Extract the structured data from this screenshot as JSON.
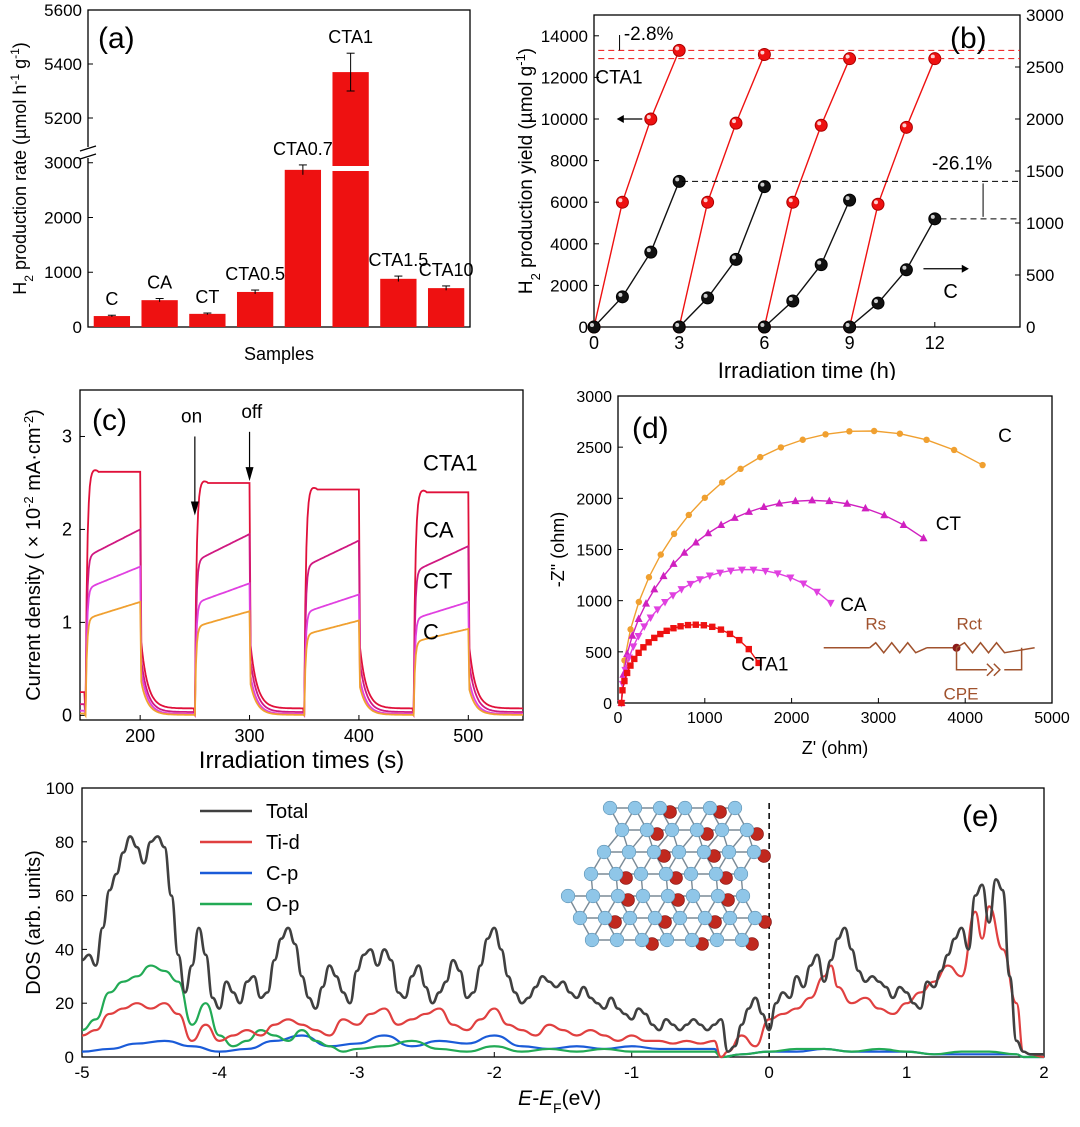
{
  "colors": {
    "red": "#ee1111",
    "black": "#111111",
    "orange": "#f0a030",
    "magenta": "#e040e0",
    "crimson": "#e0103a",
    "blue": "#1a5bd8",
    "green": "#22aa55",
    "dark": "#404040",
    "brown": "#a0522d",
    "atom_blue": "#8fc6e8",
    "atom_red": "#c0281e"
  },
  "chart_data": [
    {
      "id": "a",
      "type": "bar",
      "panel_label": "(a)",
      "xlabel": "Samples",
      "ylabel_pre": "H",
      "ylabel_sub": "2",
      "ylabel_mid": " production rate (µmol h",
      "ylabel_sup1": "-1",
      "ylabel_mid2": " g",
      "ylabel_sup2": "-1",
      "ylabel_post": ")",
      "categories": [
        "C",
        "CA",
        "CT",
        "CTA0.5",
        "CTA0.7",
        "CTA1",
        "CTA1.5",
        "CTA10"
      ],
      "values": [
        200,
        490,
        240,
        640,
        2870,
        5370,
        880,
        710
      ],
      "errors": [
        15,
        30,
        15,
        35,
        90,
        70,
        50,
        40
      ],
      "lower_ylim": [
        0,
        3050
      ],
      "upper_ylim": [
        5100,
        5600
      ],
      "lower_ticks": [
        0,
        1000,
        2000,
        3000
      ],
      "upper_ticks": [
        5200,
        5400,
        5600
      ]
    },
    {
      "id": "b",
      "type": "line",
      "panel_label": "(b)",
      "xlabel": "Irradiation time (h)",
      "ylabel_pre": "H",
      "ylabel_sub": "2",
      "ylabel_mid": " production yield (µmol g",
      "ylabel_sup": "-1",
      "ylabel_post": ")",
      "xlim": [
        0,
        15
      ],
      "xticks": [
        0,
        3,
        6,
        9,
        12
      ],
      "ylim_left": [
        0,
        15000
      ],
      "yticks_left": [
        0,
        2000,
        4000,
        6000,
        8000,
        10000,
        12000,
        14000
      ],
      "ylim_right": [
        0,
        3000
      ],
      "yticks_right": [
        0,
        500,
        1000,
        1500,
        2000,
        2500,
        3000
      ],
      "series": [
        {
          "name": "CTA1",
          "axis": "left",
          "cycles": [
            {
              "x": [
                0,
                1,
                2,
                3
              ],
              "y": [
                0,
                6000,
                10000,
                13300
              ]
            },
            {
              "x": [
                3,
                4,
                5,
                6
              ],
              "y": [
                0,
                6000,
                9800,
                13100
              ]
            },
            {
              "x": [
                6,
                7,
                8,
                9
              ],
              "y": [
                0,
                6000,
                9700,
                12900
              ]
            },
            {
              "x": [
                9,
                10,
                11,
                12
              ],
              "y": [
                0,
                5900,
                9600,
                12900
              ]
            }
          ]
        },
        {
          "name": "C",
          "axis": "right",
          "cycles": [
            {
              "x": [
                0,
                1,
                2,
                3
              ],
              "y": [
                0,
                290,
                720,
                1400
              ]
            },
            {
              "x": [
                3,
                4,
                5,
                6
              ],
              "y": [
                0,
                280,
                650,
                1350
              ]
            },
            {
              "x": [
                6,
                7,
                8,
                9
              ],
              "y": [
                0,
                250,
                600,
                1220
              ]
            },
            {
              "x": [
                9,
                10,
                11,
                12
              ],
              "y": [
                0,
                230,
                550,
                1040
              ]
            }
          ]
        }
      ],
      "annotations": {
        "cta1_drop": "-2.8%",
        "c_drop": "-26.1%",
        "cta1_label": "CTA1",
        "c_label": "C"
      }
    },
    {
      "id": "c",
      "type": "line",
      "panel_label": "(c)",
      "xlabel": "Irradiation times (s)",
      "ylabel_pre": "Current density ( × 10",
      "ylabel_sup": "-2",
      "ylabel_mid": " mA·cm",
      "ylabel_sup2": "-2",
      "ylabel_post": ")",
      "xlim": [
        145,
        550
      ],
      "xticks": [
        200,
        300,
        400,
        500
      ],
      "ylim": [
        -0.05,
        3.5
      ],
      "yticks": [
        0,
        1,
        2,
        3
      ],
      "on_label": "on",
      "off_label": "off",
      "light_on": [
        150,
        250,
        350,
        450
      ],
      "light_duration": 50,
      "series": [
        {
          "name": "CTA1",
          "plateau": [
            2.62,
            2.5,
            2.43,
            2.4
          ],
          "dark": 0.25
        },
        {
          "name": "CA",
          "plateau": [
            2.0,
            1.95,
            1.88,
            1.82
          ],
          "dark": 0.12
        },
        {
          "name": "CT",
          "plateau": [
            1.6,
            1.42,
            1.3,
            1.22
          ],
          "dark": 0.05
        },
        {
          "name": "C",
          "plateau": [
            1.22,
            1.12,
            1.02,
            0.93
          ],
          "dark": 0.02
        }
      ]
    },
    {
      "id": "d",
      "type": "scatter",
      "panel_label": "(d)",
      "xlabel": "Z' (ohm)",
      "ylabel": "-Z\" (ohm)",
      "xlim": [
        0,
        5000
      ],
      "xticks": [
        0,
        1000,
        2000,
        3000,
        4000,
        5000
      ],
      "ylim": [
        0,
        3000
      ],
      "yticks": [
        0,
        500,
        1000,
        1500,
        2000,
        2500,
        3000
      ],
      "series": [
        {
          "name": "C",
          "marker": "circle",
          "diameter": 5600,
          "end_x": 4200
        },
        {
          "name": "CT",
          "marker": "triangle-up",
          "diameter": 4400,
          "end_x": 3520
        },
        {
          "name": "CA",
          "marker": "triangle-down",
          "diameter": 2900,
          "end_x": 2450
        },
        {
          "name": "CTA1",
          "marker": "square",
          "diameter": 1700,
          "end_x": 1620
        }
      ],
      "circuit": {
        "rs": "Rs",
        "rct": "Rct",
        "cpe": "CPE"
      }
    },
    {
      "id": "e",
      "type": "line",
      "panel_label": "(e)",
      "xlabel_pre": "E",
      "xlabel_mid": "-E",
      "xlabel_sub": "F",
      "xlabel_post": "(eV)",
      "ylabel": "DOS (arb. units)",
      "xlim": [
        -5,
        2
      ],
      "xticks": [
        -5,
        -4,
        -3,
        -2,
        -1,
        0,
        1,
        2
      ],
      "ylim": [
        0,
        100
      ],
      "yticks": [
        0,
        20,
        40,
        60,
        80,
        100
      ],
      "fermi_level": 0,
      "series": [
        {
          "name": "Total",
          "x": [
            -5,
            -4.95,
            -4.9,
            -4.85,
            -4.8,
            -4.75,
            -4.7,
            -4.65,
            -4.6,
            -4.55,
            -4.5,
            -4.45,
            -4.4,
            -4.35,
            -4.3,
            -4.25,
            -4.2,
            -4.15,
            -4.1,
            -4.05,
            -4.0,
            -3.95,
            -3.9,
            -3.85,
            -3.8,
            -3.75,
            -3.7,
            -3.65,
            -3.6,
            -3.55,
            -3.5,
            -3.45,
            -3.4,
            -3.35,
            -3.3,
            -3.25,
            -3.2,
            -3.15,
            -3.1,
            -3.05,
            -3.0,
            -2.95,
            -2.9,
            -2.85,
            -2.8,
            -2.75,
            -2.7,
            -2.65,
            -2.6,
            -2.55,
            -2.5,
            -2.45,
            -2.4,
            -2.35,
            -2.3,
            -2.25,
            -2.2,
            -2.15,
            -2.1,
            -2.05,
            -2.0,
            -1.95,
            -1.9,
            -1.85,
            -1.8,
            -1.75,
            -1.7,
            -1.65,
            -1.6,
            -1.55,
            -1.5,
            -1.45,
            -1.4,
            -1.35,
            -1.3,
            -1.25,
            -1.2,
            -1.15,
            -1.1,
            -1.05,
            -1.0,
            -0.95,
            -0.9,
            -0.85,
            -0.8,
            -0.75,
            -0.7,
            -0.65,
            -0.6,
            -0.55,
            -0.5,
            -0.45,
            -0.4,
            -0.35,
            -0.3,
            -0.25,
            -0.2,
            -0.15,
            -0.1,
            -0.05,
            0.0,
            0.05,
            0.1,
            0.15,
            0.2,
            0.25,
            0.3,
            0.35,
            0.4,
            0.45,
            0.5,
            0.55,
            0.6,
            0.65,
            0.7,
            0.75,
            0.8,
            0.85,
            0.9,
            0.95,
            1.0,
            1.05,
            1.1,
            1.15,
            1.2,
            1.25,
            1.3,
            1.35,
            1.4,
            1.45,
            1.5,
            1.55,
            1.6,
            1.65,
            1.7,
            1.75,
            1.8,
            1.85,
            1.9,
            1.95,
            2.0
          ],
          "y": [
            36,
            38,
            34,
            48,
            62,
            68,
            76,
            82,
            78,
            72,
            80,
            82,
            78,
            60,
            38,
            24,
            34,
            48,
            38,
            22,
            18,
            28,
            24,
            20,
            28,
            30,
            22,
            24,
            36,
            44,
            48,
            42,
            30,
            22,
            18,
            26,
            34,
            30,
            24,
            20,
            32,
            38,
            40,
            34,
            40,
            36,
            24,
            22,
            30,
            34,
            26,
            20,
            24,
            28,
            36,
            32,
            22,
            24,
            34,
            44,
            48,
            40,
            30,
            24,
            20,
            22,
            26,
            30,
            28,
            26,
            28,
            24,
            22,
            26,
            22,
            20,
            18,
            22,
            18,
            16,
            14,
            18,
            16,
            12,
            10,
            14,
            12,
            10,
            12,
            14,
            12,
            10,
            12,
            14,
            2,
            4,
            12,
            18,
            22,
            16,
            10,
            20,
            24,
            22,
            30,
            26,
            34,
            38,
            28,
            36,
            44,
            48,
            40,
            32,
            28,
            30,
            28,
            26,
            22,
            26,
            24,
            20,
            18,
            28,
            26,
            32,
            38,
            44,
            48,
            40,
            60,
            64,
            50,
            66,
            62,
            30,
            6,
            2,
            1,
            1,
            1
          ]
        },
        {
          "name": "Ti-d",
          "x": [
            -5,
            -4.9,
            -4.8,
            -4.7,
            -4.6,
            -4.5,
            -4.4,
            -4.3,
            -4.2,
            -4.1,
            -4.0,
            -3.9,
            -3.8,
            -3.7,
            -3.6,
            -3.5,
            -3.4,
            -3.3,
            -3.2,
            -3.1,
            -3.0,
            -2.9,
            -2.8,
            -2.7,
            -2.6,
            -2.5,
            -2.4,
            -2.3,
            -2.2,
            -2.1,
            -2.0,
            -1.9,
            -1.8,
            -1.7,
            -1.6,
            -1.5,
            -1.4,
            -1.3,
            -1.2,
            -1.1,
            -1.0,
            -0.9,
            -0.8,
            -0.7,
            -0.6,
            -0.5,
            -0.4,
            -0.35,
            -0.3,
            -0.2,
            -0.1,
            0.0,
            0.1,
            0.2,
            0.3,
            0.4,
            0.45,
            0.5,
            0.6,
            0.7,
            0.8,
            0.9,
            1.0,
            1.1,
            1.2,
            1.3,
            1.4,
            1.5,
            1.55,
            1.6,
            1.7,
            1.8,
            1.85,
            1.9,
            2.0
          ],
          "y": [
            8,
            10,
            16,
            18,
            20,
            18,
            20,
            16,
            6,
            12,
            6,
            8,
            10,
            8,
            12,
            14,
            12,
            10,
            8,
            14,
            12,
            16,
            18,
            12,
            14,
            16,
            18,
            12,
            10,
            14,
            18,
            12,
            10,
            8,
            12,
            10,
            8,
            10,
            8,
            6,
            8,
            6,
            6,
            5,
            6,
            5,
            6,
            0,
            2,
            8,
            4,
            14,
            16,
            18,
            22,
            30,
            34,
            26,
            20,
            22,
            18,
            16,
            20,
            24,
            28,
            34,
            30,
            54,
            44,
            56,
            40,
            20,
            2,
            1,
            0
          ]
        },
        {
          "name": "C-p",
          "x": [
            -5,
            -4.8,
            -4.6,
            -4.4,
            -4.2,
            -4.0,
            -3.8,
            -3.6,
            -3.4,
            -3.2,
            -3.0,
            -2.8,
            -2.6,
            -2.4,
            -2.2,
            -2.0,
            -1.8,
            -1.6,
            -1.4,
            -1.2,
            -1.0,
            -0.8,
            -0.6,
            -0.4,
            -0.35,
            -0.2,
            0.0,
            0.2,
            0.4,
            0.6,
            0.8,
            1.0,
            1.2,
            1.4,
            1.6,
            1.8,
            1.85,
            2.0
          ],
          "y": [
            2,
            3,
            5,
            6,
            4,
            2,
            3,
            6,
            8,
            4,
            5,
            8,
            4,
            6,
            5,
            8,
            4,
            3,
            4,
            3,
            4,
            3,
            3,
            3,
            0,
            1,
            2,
            2,
            3,
            2,
            2,
            2,
            1,
            1,
            1,
            1,
            0,
            0
          ]
        },
        {
          "name": "O-p",
          "x": [
            -5,
            -4.9,
            -4.8,
            -4.7,
            -4.6,
            -4.5,
            -4.4,
            -4.3,
            -4.2,
            -4.1,
            -4.0,
            -3.9,
            -3.8,
            -3.7,
            -3.6,
            -3.5,
            -3.4,
            -3.3,
            -3.2,
            -3.1,
            -3.0,
            -2.8,
            -2.6,
            -2.4,
            -2.2,
            -2.0,
            -1.8,
            -1.6,
            -1.4,
            -1.2,
            -1.0,
            -0.8,
            -0.6,
            -0.4,
            -0.35,
            -0.2,
            0.0,
            0.2,
            0.4,
            0.6,
            0.8,
            1.0,
            1.2,
            1.4,
            1.6,
            1.8,
            1.85,
            2.0
          ],
          "y": [
            10,
            14,
            24,
            28,
            30,
            34,
            32,
            28,
            12,
            20,
            8,
            4,
            6,
            10,
            8,
            6,
            10,
            6,
            4,
            2,
            3,
            4,
            6,
            3,
            2,
            4,
            2,
            3,
            2,
            3,
            2,
            2,
            2,
            2,
            0,
            1,
            2,
            3,
            3,
            2,
            3,
            2,
            1,
            2,
            2,
            1,
            0,
            0
          ]
        }
      ]
    }
  ]
}
